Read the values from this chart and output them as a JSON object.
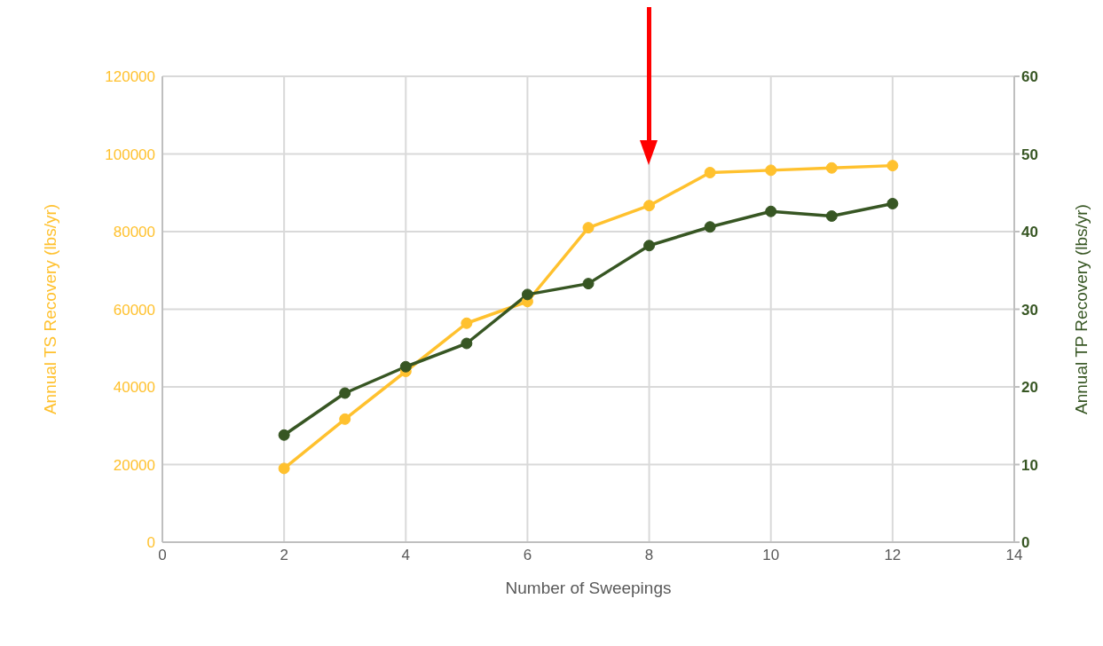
{
  "chart_data": {
    "type": "line",
    "xlabel": "Number of Sweepings",
    "ylabel": "Annual TS Recovery (lbs/yr)",
    "y2label": "Annual TP Recovery (lbs/yr)",
    "x": [
      2,
      3,
      4,
      5,
      6,
      7,
      8,
      9,
      10,
      11,
      12
    ],
    "series": [
      {
        "color": "#ffc12e",
        "values": [
          19000,
          31700,
          44000,
          56400,
          62000,
          81000,
          86700,
          95200,
          95800,
          96400,
          97000
        ]
      },
      {
        "color": "#375623",
        "axis": "y2",
        "values": [
          13.8,
          19.2,
          22.6,
          25.6,
          31.9,
          33.3,
          38.2,
          40.6,
          42.6,
          42.0,
          43.6
        ]
      }
    ],
    "xlim": [
      0,
      14
    ],
    "xticks": [
      0,
      2,
      4,
      6,
      8,
      10,
      12,
      14
    ],
    "ylim": [
      0,
      120000
    ],
    "yticks": [
      0,
      20000,
      40000,
      60000,
      80000,
      100000,
      120000
    ],
    "y2lim": [
      0,
      60
    ],
    "y2ticks": [
      0,
      10,
      20,
      30,
      40,
      50,
      60
    ],
    "grid": true,
    "legend": false,
    "marker": "circle",
    "line_style": "solid"
  }
}
